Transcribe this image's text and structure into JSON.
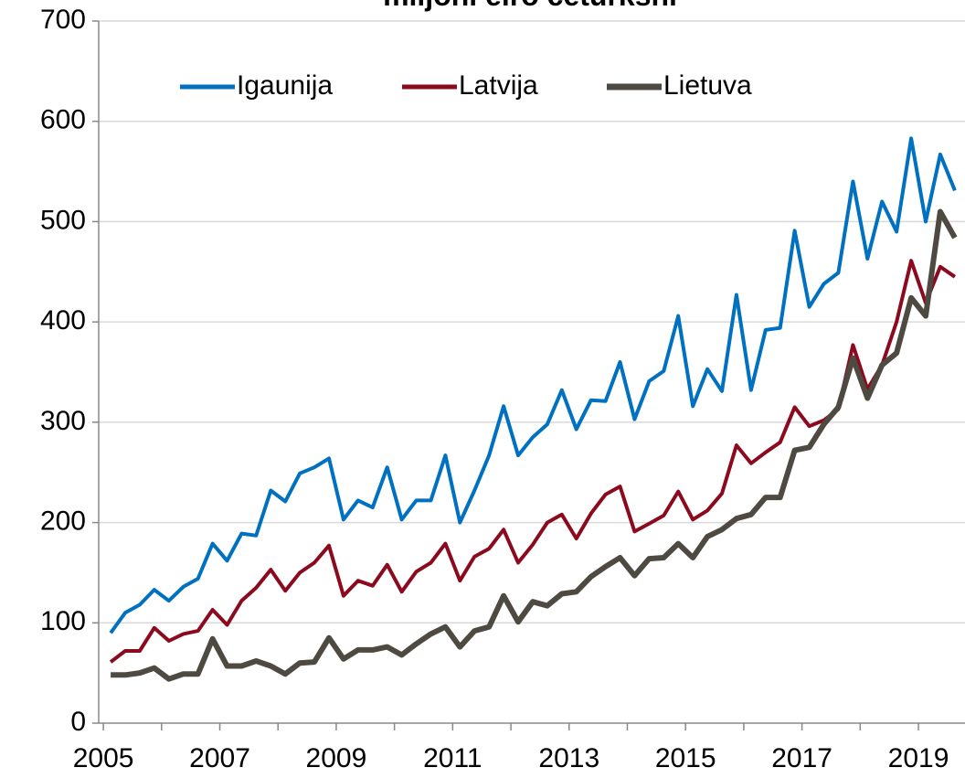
{
  "chart_data": {
    "type": "line",
    "title": "miljoni eiro ceturksnī",
    "x": [
      2005.125,
      2005.375,
      2005.625,
      2005.875,
      2006.125,
      2006.375,
      2006.625,
      2006.875,
      2007.125,
      2007.375,
      2007.625,
      2007.875,
      2008.125,
      2008.375,
      2008.625,
      2008.875,
      2009.125,
      2009.375,
      2009.625,
      2009.875,
      2010.125,
      2010.375,
      2010.625,
      2010.875,
      2011.125,
      2011.375,
      2011.625,
      2011.875,
      2012.125,
      2012.375,
      2012.625,
      2012.875,
      2013.125,
      2013.375,
      2013.625,
      2013.875,
      2014.125,
      2014.375,
      2014.625,
      2014.875,
      2015.125,
      2015.375,
      2015.625,
      2015.875,
      2016.125,
      2016.375,
      2016.625,
      2016.875,
      2017.125,
      2017.375,
      2017.625,
      2017.875,
      2018.125,
      2018.375,
      2018.625,
      2018.875,
      2019.125,
      2019.375,
      2019.625
    ],
    "series": [
      {
        "name": "Igaunija",
        "color": "#0070c0",
        "width": 4,
        "values": [
          90,
          110,
          118,
          133,
          122,
          136,
          144,
          179,
          162,
          189,
          187,
          232,
          221,
          249,
          255,
          264,
          203,
          222,
          215,
          255,
          203,
          222,
          222,
          267,
          200,
          232,
          267,
          316,
          267,
          285,
          298,
          332,
          293,
          322,
          321,
          360,
          303,
          341,
          351,
          406,
          316,
          353,
          331,
          427,
          332,
          392,
          394,
          491,
          415,
          438,
          449,
          540,
          463,
          520,
          490,
          583,
          500,
          567,
          531
        ]
      },
      {
        "name": "Latvija",
        "color": "#8b0a1e",
        "width": 4,
        "values": [
          61,
          72,
          72,
          95,
          82,
          89,
          92,
          113,
          98,
          122,
          135,
          153,
          132,
          150,
          160,
          177,
          127,
          142,
          137,
          158,
          131,
          151,
          160,
          179,
          142,
          166,
          174,
          193,
          160,
          178,
          200,
          208,
          184,
          209,
          228,
          236,
          191,
          199,
          207,
          231,
          203,
          212,
          229,
          277,
          259,
          270,
          280,
          315,
          296,
          302,
          313,
          377,
          333,
          357,
          400,
          461,
          419,
          455,
          445
        ]
      },
      {
        "name": "Lietuva",
        "color": "#4f4a41",
        "width": 6,
        "values": [
          48,
          48,
          50,
          55,
          44,
          49,
          49,
          84,
          57,
          57,
          62,
          57,
          49,
          60,
          61,
          85,
          64,
          73,
          73,
          76,
          68,
          79,
          89,
          96,
          76,
          92,
          96,
          127,
          101,
          121,
          117,
          129,
          131,
          146,
          156,
          165,
          147,
          164,
          165,
          179,
          165,
          186,
          193,
          204,
          208,
          225,
          225,
          272,
          275,
          298,
          315,
          364,
          324,
          357,
          369,
          424,
          406,
          510,
          484
        ]
      }
    ],
    "xlim": [
      2004.92,
      2019.8
    ],
    "xticks": [
      2005,
      2007,
      2009,
      2011,
      2013,
      2015,
      2017,
      2019
    ],
    "xticks_minor": [
      2006,
      2008,
      2010,
      2012,
      2014,
      2016,
      2018
    ],
    "ylim": [
      0,
      700
    ],
    "yticks": [
      0,
      100,
      200,
      300,
      400,
      500,
      600,
      700
    ],
    "grid": true,
    "legend": "top"
  }
}
